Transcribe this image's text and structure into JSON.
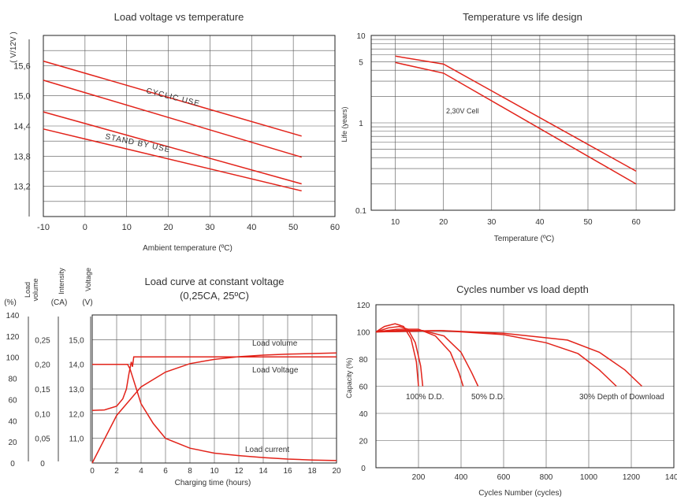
{
  "colors": {
    "curve": "#e2231a",
    "grid": "#555555",
    "text": "#333333",
    "frame": "#222222"
  },
  "chart_data": [
    {
      "id": "c1",
      "type": "line",
      "title": "Load voltage vs temperature",
      "xlabel": "Ambient temperature (ºC)",
      "ylabel": "( V/12V )",
      "x_ticks": [
        "-10",
        "0",
        "10",
        "20",
        "30",
        "40",
        "50",
        "60"
      ],
      "y_ticks": [
        "15,6",
        "15,0",
        "14,4",
        "13,8",
        "13,2"
      ],
      "xlim": [
        -10,
        60
      ],
      "ylim": [
        12.6,
        16.2
      ],
      "grid": true,
      "series": [
        {
          "name": "CYCLIC USE",
          "x": [
            -10,
            52
          ],
          "y": [
            15.69,
            14.2
          ]
        },
        {
          "x": [
            -10,
            52
          ],
          "y": [
            15.31,
            13.78
          ]
        },
        {
          "name": "STAND BY USE",
          "x": [
            -10,
            52
          ],
          "y": [
            14.68,
            13.25
          ]
        },
        {
          "x": [
            -10,
            52
          ],
          "y": [
            14.34,
            13.11
          ]
        }
      ],
      "annotations": [
        "CYCLIC USE",
        "STAND BY USE"
      ]
    },
    {
      "id": "c2",
      "type": "line",
      "title": "Temperature vs life design",
      "xlabel": "Temperature (ºC)",
      "ylabel": "Life (years)",
      "x_ticks": [
        "10",
        "20",
        "30",
        "40",
        "50",
        "60"
      ],
      "y_ticks": [
        "10",
        "5",
        "1",
        "0.1"
      ],
      "xlim": [
        5,
        68
      ],
      "ylim": [
        0.1,
        10
      ],
      "y_scale": "log",
      "grid": true,
      "series": [
        {
          "x": [
            10,
            20,
            60
          ],
          "y": [
            5.8,
            4.7,
            0.28
          ]
        },
        {
          "x": [
            10,
            20,
            60
          ],
          "y": [
            4.9,
            3.7,
            0.2
          ]
        }
      ],
      "annotations": [
        "2,30V Cell"
      ]
    },
    {
      "id": "c3",
      "type": "line",
      "title": "Load curve at constant voltage",
      "subtitle": "(0,25CA, 25ºC)",
      "xlabel": "Charging time (hours)",
      "x_ticks": [
        "0",
        "2",
        "4",
        "6",
        "8",
        "10",
        "12",
        "14",
        "16",
        "18",
        "20"
      ],
      "xlim": [
        0,
        20
      ],
      "axes": [
        {
          "label": "Load volume (%)",
          "header": [
            "Load",
            "volume",
            "(%)"
          ],
          "ticks": [
            "140",
            "120",
            "100",
            "80",
            "60",
            "40",
            "20",
            "0"
          ],
          "range": [
            0,
            140
          ]
        },
        {
          "label": "Intensity (CA)",
          "header": [
            "Intensity",
            "(CA)"
          ],
          "ticks": [
            "0,25",
            "0,20",
            "0,15",
            "0,10",
            "0,05",
            "0"
          ],
          "range": [
            0,
            0.3
          ]
        },
        {
          "label": "Voltage (V)",
          "header": [
            "Voltage",
            "(V)"
          ],
          "ticks": [
            "15,0",
            "14,0",
            "13,0",
            "12,0",
            "11,0"
          ],
          "range": [
            10,
            16
          ]
        }
      ],
      "grid": true,
      "series": [
        {
          "name": "Load volume",
          "x": [
            0,
            2,
            4,
            6,
            8,
            10,
            12,
            14,
            16,
            18,
            20
          ],
          "y": [
            0,
            45,
            72,
            86,
            94,
            98,
            100.5,
            102,
            103,
            103.5,
            104
          ]
        },
        {
          "name": "Load Voltage",
          "x": [
            0,
            1,
            2,
            2.5,
            2.8,
            3.0,
            3.2,
            3.3,
            3.4,
            20
          ],
          "y": [
            12.13,
            12.15,
            12.3,
            12.6,
            13.0,
            13.6,
            14.1,
            13.9,
            14.3,
            14.3
          ]
        },
        {
          "name": "Load current",
          "x": [
            0,
            2.9,
            3.1,
            4,
            5,
            6,
            8,
            10,
            12,
            14,
            16,
            18,
            20
          ],
          "y": [
            0.2,
            0.2,
            0.19,
            0.12,
            0.08,
            0.05,
            0.03,
            0.02,
            0.015,
            0.011,
            0.008,
            0.006,
            0.005
          ]
        }
      ],
      "annotations": [
        "Load volume",
        "Load Voltage",
        "Load current"
      ]
    },
    {
      "id": "c4",
      "type": "line",
      "title": "Cycles number vs load depth",
      "xlabel": "Cycles Number (cycles)",
      "ylabel": "Capacity (%)",
      "x_ticks": [
        "200",
        "400",
        "600",
        "800",
        "1000",
        "1200",
        "1400"
      ],
      "y_ticks": [
        "120",
        "100",
        "80",
        "60",
        "40",
        "20",
        "0"
      ],
      "xlim": [
        0,
        1400
      ],
      "ylim": [
        0,
        120
      ],
      "grid": true,
      "series": [
        {
          "name": "100% D.D.",
          "x": [
            0,
            40,
            90,
            130,
            165,
            190,
            200
          ],
          "y": [
            100,
            104,
            106,
            104,
            95,
            78,
            60
          ]
        },
        {
          "name": "100% D.D.",
          "x": [
            0,
            60,
            110,
            150,
            185,
            210,
            220
          ],
          "y": [
            100,
            103,
            104,
            102,
            92,
            75,
            60
          ]
        },
        {
          "name": "50% D.D.",
          "x": [
            0,
            100,
            200,
            280,
            350,
            390,
            410
          ],
          "y": [
            100,
            102,
            102,
            97,
            85,
            70,
            60
          ]
        },
        {
          "name": "50% D.D.",
          "x": [
            0,
            100,
            220,
            320,
            400,
            450,
            480
          ],
          "y": [
            100,
            101,
            101,
            97,
            85,
            70,
            60
          ]
        },
        {
          "name": "30% Depth of Download",
          "x": [
            0,
            300,
            600,
            800,
            950,
            1050,
            1130
          ],
          "y": [
            100,
            101,
            98,
            92,
            84,
            72,
            60
          ]
        },
        {
          "name": "30% Depth of Download",
          "x": [
            0,
            300,
            600,
            900,
            1050,
            1170,
            1250
          ],
          "y": [
            100,
            101,
            99,
            94,
            85,
            72,
            60
          ]
        }
      ],
      "annotations": [
        "100% D.D.",
        "50% D.D.",
        "30% Depth of Download"
      ]
    }
  ]
}
